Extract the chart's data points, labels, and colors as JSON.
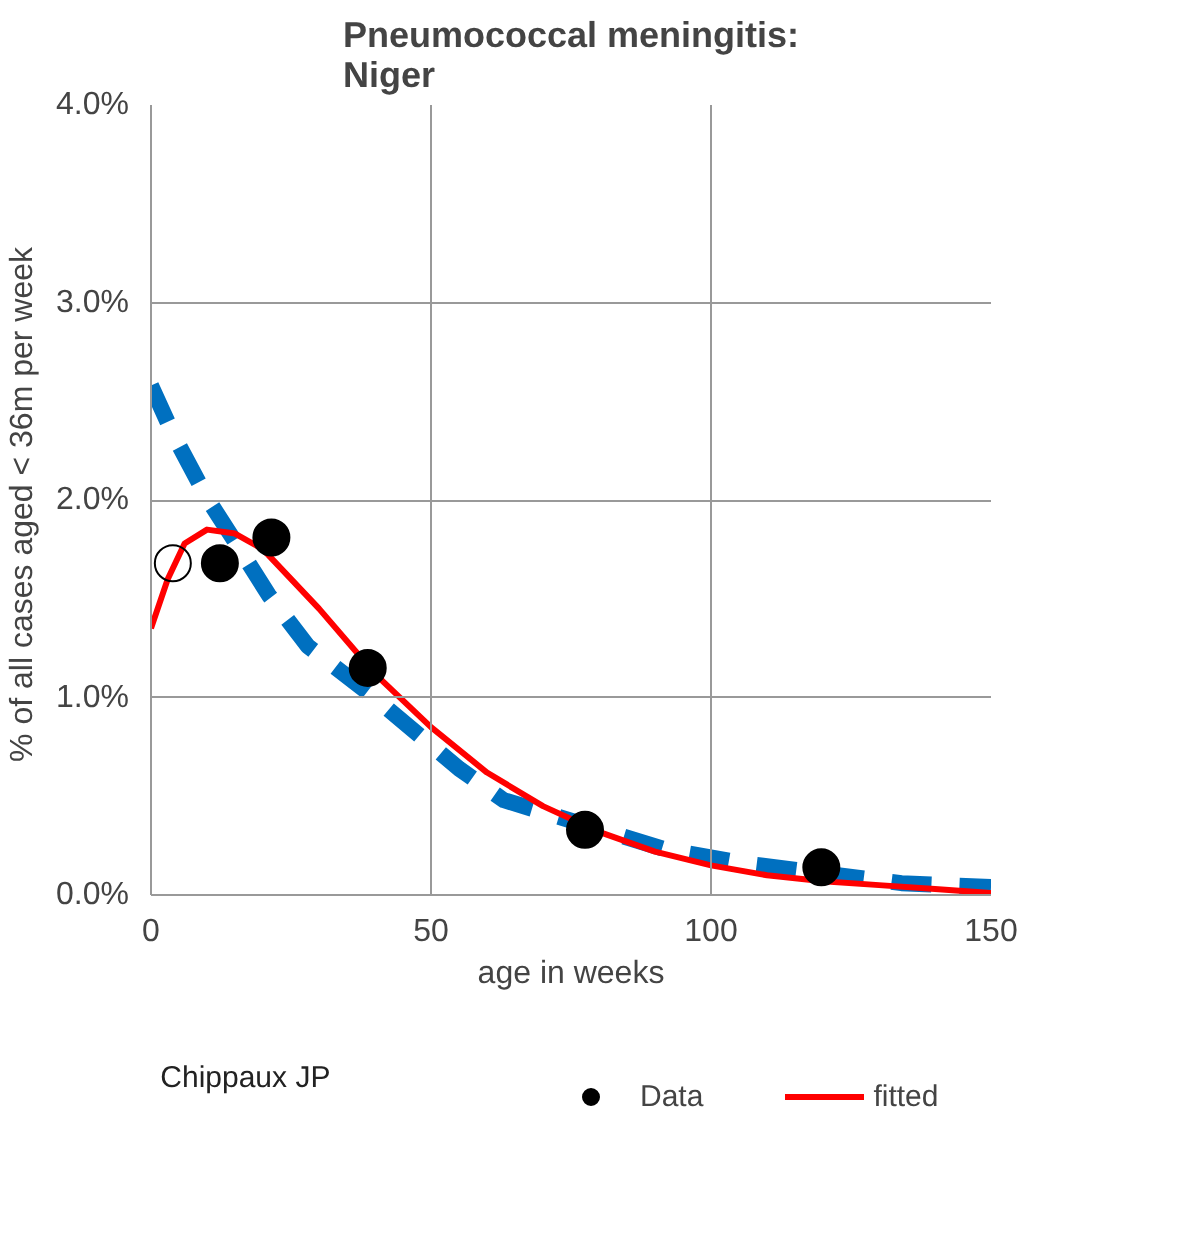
{
  "chart_data": {
    "type": "scatter",
    "title": "Pneumococcal meningitis:\nNiger",
    "xlabel": "age in weeks",
    "ylabel": "% of all cases aged  < 36m per week",
    "xlim": [
      0,
      150
    ],
    "xticks": [
      0,
      50,
      100,
      150
    ],
    "ylim": [
      0,
      4
    ],
    "yticks": [
      {
        "value": 0,
        "label": "0.0%"
      },
      {
        "value": 1,
        "label": "1.0%"
      },
      {
        "value": 2,
        "label": "2.0%"
      },
      {
        "value": 3,
        "label": "3.0%"
      },
      {
        "value": 4,
        "label": "4.0%"
      }
    ],
    "grid": true,
    "legend": "bottom",
    "annotations": [
      "Chippaux JP"
    ],
    "series": [
      {
        "type": "line",
        "color": "#0070c0",
        "line_style": "dashed",
        "x": [
          0,
          4,
          10,
          15,
          21,
          28,
          39,
          55,
          63,
          92,
          106,
          134,
          150
        ],
        "values": [
          2.58,
          2.33,
          2.01,
          1.79,
          1.52,
          1.26,
          1.02,
          0.64,
          0.48,
          0.23,
          0.16,
          0.06,
          0.04
        ]
      },
      {
        "name": "Data",
        "color": "#000000",
        "marker": "circle",
        "x": [
          12.3,
          21.5,
          38.7,
          77.5,
          119.7
        ],
        "values": [
          1.68,
          1.81,
          1.15,
          0.33,
          0.14
        ]
      },
      {
        "type": "scatter",
        "color": "#000000",
        "marker": "circle_open",
        "x": [
          3.9
        ],
        "values": [
          1.68
        ]
      },
      {
        "type": "line",
        "name": "fitted",
        "color": "#ff0000",
        "line_style": "solid",
        "x": [
          0,
          3,
          6,
          10,
          15,
          20,
          30,
          40,
          50,
          60,
          70,
          80,
          90,
          100,
          110,
          120,
          130,
          140,
          150
        ],
        "values": [
          1.35,
          1.6,
          1.78,
          1.85,
          1.83,
          1.75,
          1.45,
          1.12,
          0.85,
          0.62,
          0.45,
          0.32,
          0.22,
          0.15,
          0.1,
          0.07,
          0.05,
          0.03,
          0.01
        ]
      }
    ]
  }
}
